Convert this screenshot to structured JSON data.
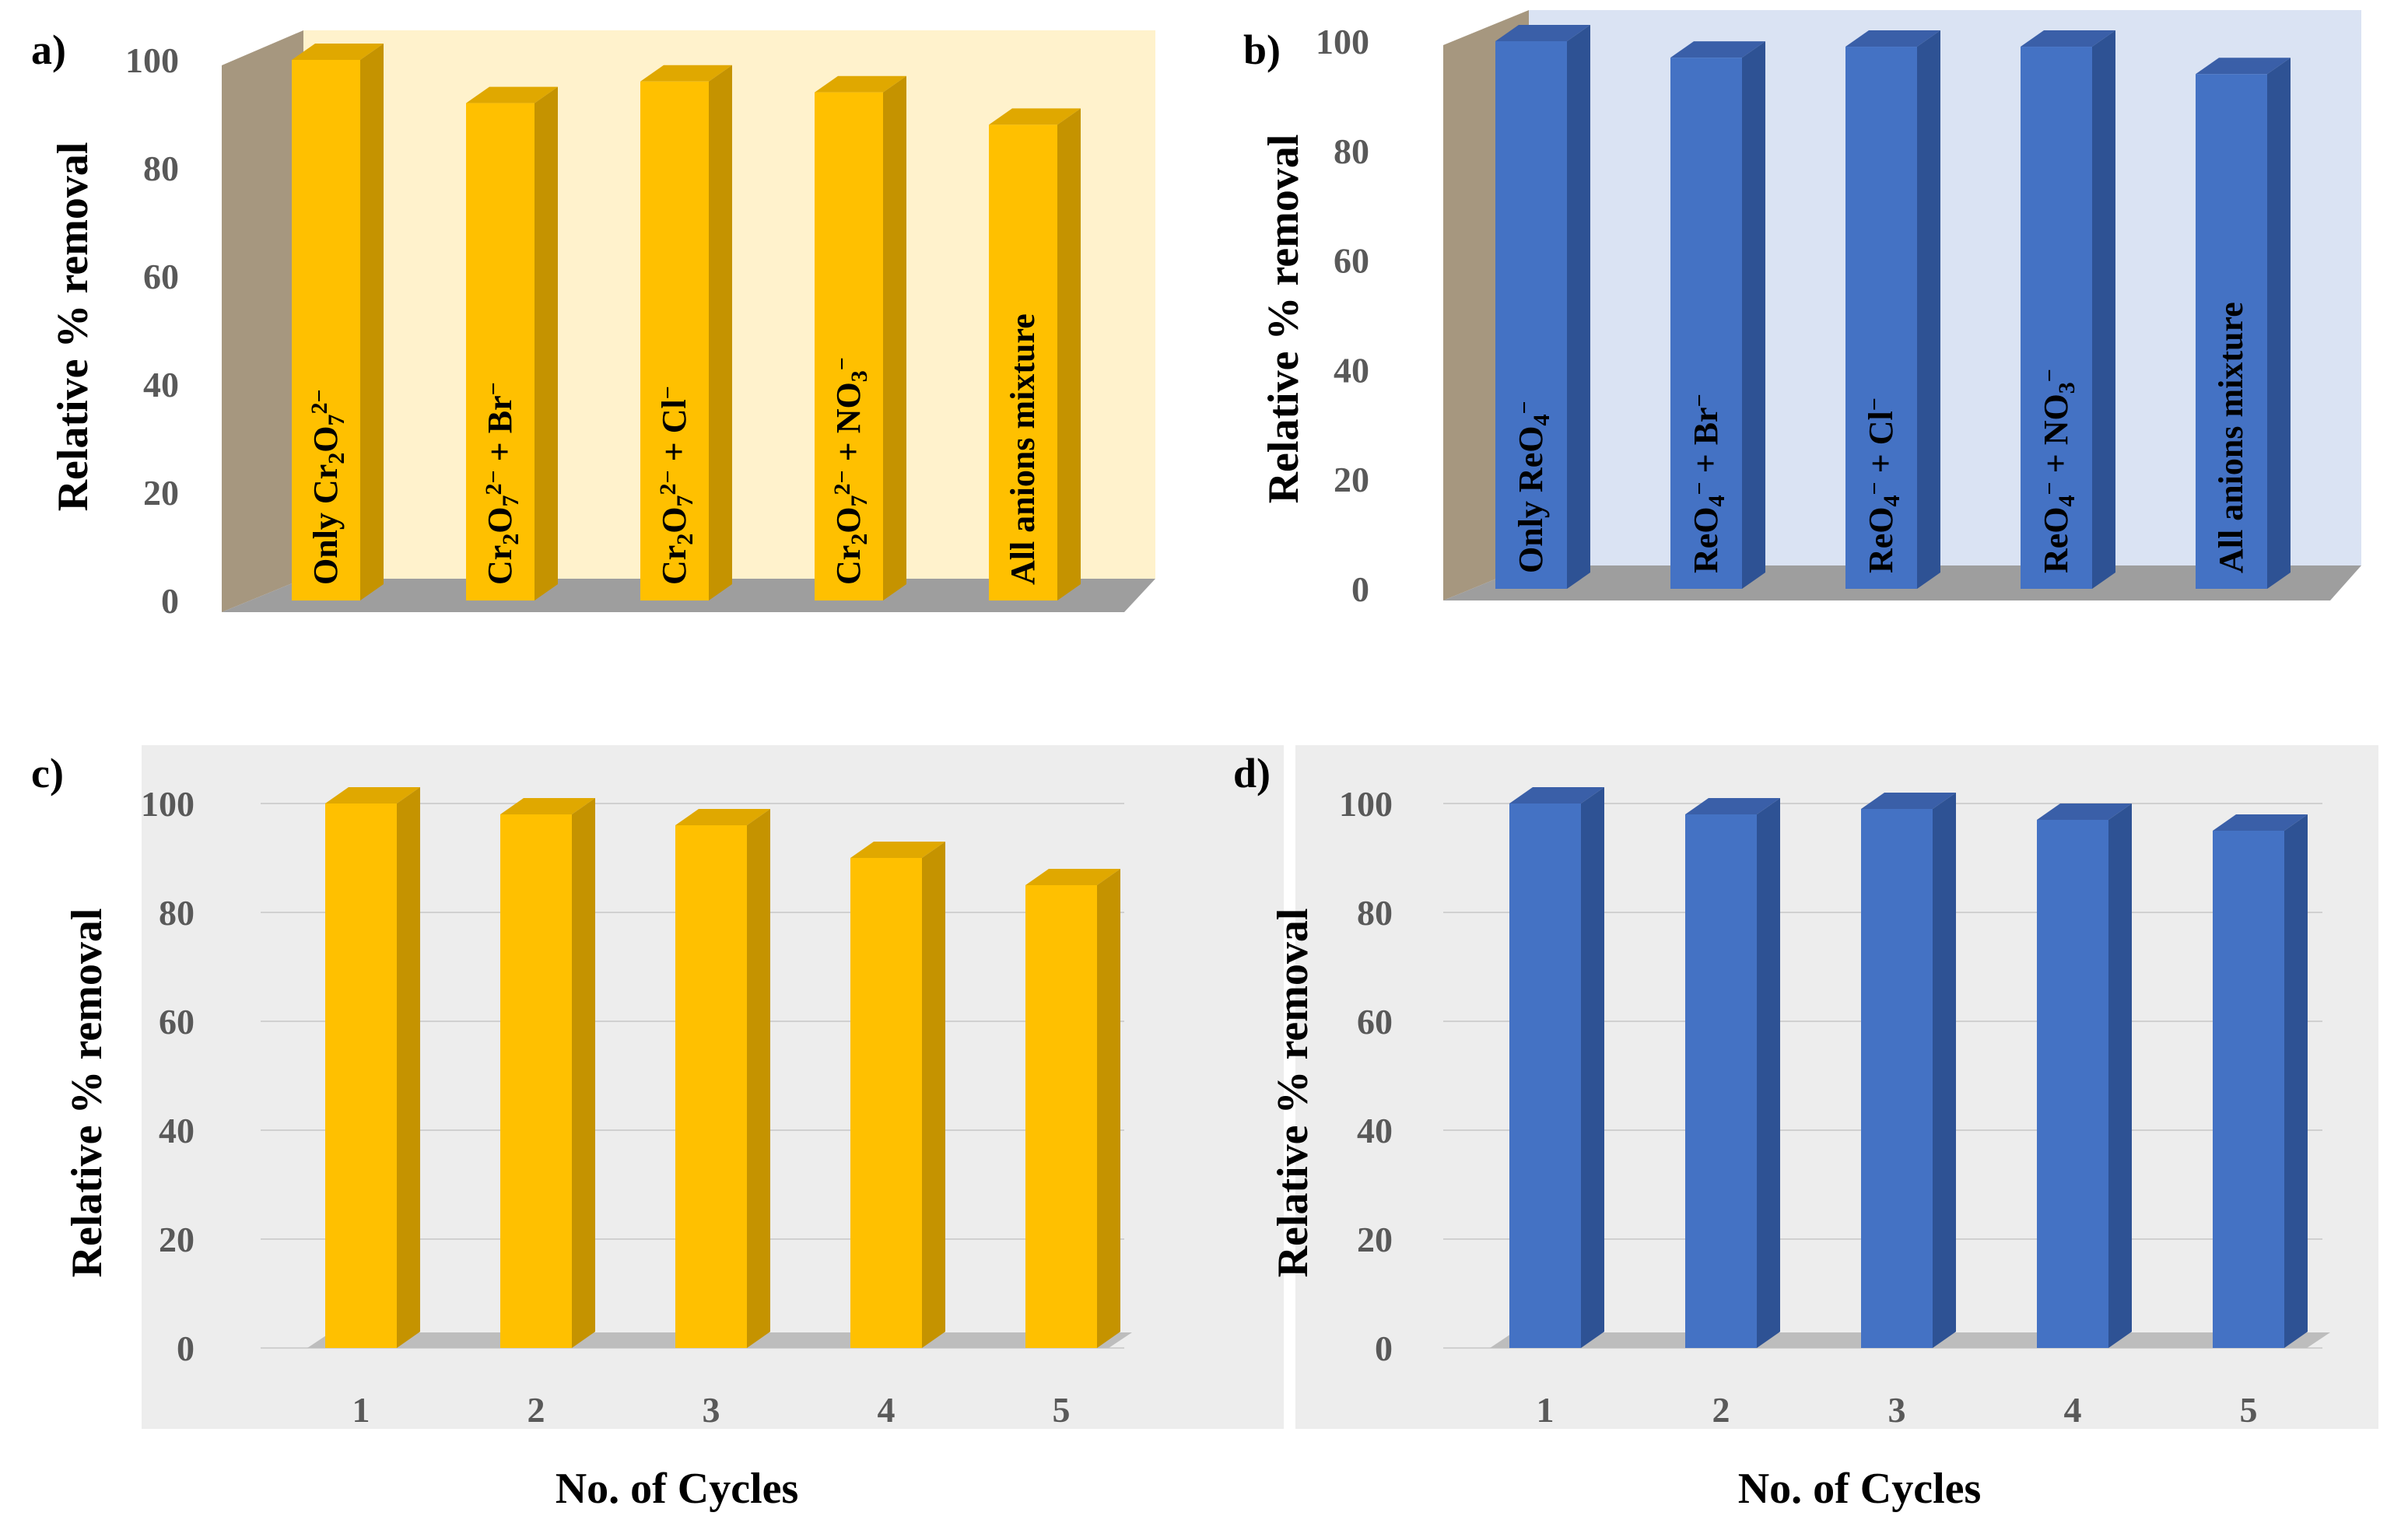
{
  "colors": {
    "gold_front": "#FFC000",
    "gold_side": "#C59300",
    "gold_top": "#E0A800",
    "blue_front": "#4472C4",
    "blue_side": "#2E5294",
    "blue_top": "#3A5FA8",
    "panel_a_back": "#FFF2CC",
    "panel_b_back": "#DAE3F3",
    "wall_left": "#A6977F",
    "floor": "#9E9E9E",
    "panel_cd_back": "#EDEDED",
    "axis_text": "#595959",
    "label_text": "#000000"
  },
  "chart_data": [
    {
      "id": "a",
      "panel_label": "a)",
      "type": "bar",
      "style": "3d-walls",
      "color": "gold",
      "title": "",
      "ylabel": "Relative % removal",
      "xlabel": "",
      "ylim": [
        0,
        100
      ],
      "yticks": [
        0,
        20,
        40,
        60,
        80,
        100
      ],
      "categories": [
        {
          "parts": [
            "Only Cr",
            "2",
            "O",
            "7",
            "2−"
          ],
          "kinds": [
            "t",
            "sub",
            "t",
            "sub",
            "sup"
          ]
        },
        {
          "parts": [
            "Cr",
            "2",
            "O",
            "7",
            "2−",
            " + Br",
            "−"
          ],
          "kinds": [
            "t",
            "sub",
            "t",
            "sub",
            "sup",
            "t",
            "sup"
          ]
        },
        {
          "parts": [
            "Cr",
            "2",
            "O",
            "7",
            "2−",
            " + Cl",
            "−"
          ],
          "kinds": [
            "t",
            "sub",
            "t",
            "sub",
            "sup",
            "t",
            "sup"
          ]
        },
        {
          "parts": [
            "Cr",
            "2",
            "O",
            "7",
            "2−",
            " + NO",
            "3",
            "−"
          ],
          "kinds": [
            "t",
            "sub",
            "t",
            "sub",
            "sup",
            "t",
            "sub",
            "sup"
          ]
        },
        {
          "parts": [
            "All anions mixture"
          ],
          "kinds": [
            "t"
          ]
        }
      ],
      "values": [
        100,
        92,
        96,
        94,
        88
      ]
    },
    {
      "id": "b",
      "panel_label": "b)",
      "type": "bar",
      "style": "3d-walls",
      "color": "blue",
      "title": "",
      "ylabel": "Relative % removal",
      "xlabel": "",
      "ylim": [
        0,
        100
      ],
      "yticks": [
        0,
        20,
        40,
        60,
        80,
        100
      ],
      "categories": [
        {
          "parts": [
            "Only ReO",
            "4",
            "−"
          ],
          "kinds": [
            "t",
            "sub",
            "sup"
          ]
        },
        {
          "parts": [
            "ReO",
            "4",
            "−",
            " + Br",
            "−"
          ],
          "kinds": [
            "t",
            "sub",
            "sup",
            "t",
            "sup"
          ]
        },
        {
          "parts": [
            "ReO",
            "4",
            "−",
            " + Cl",
            "−"
          ],
          "kinds": [
            "t",
            "sub",
            "sup",
            "t",
            "sup"
          ]
        },
        {
          "parts": [
            "ReO",
            "4",
            "−",
            " + NO",
            "3",
            "−"
          ],
          "kinds": [
            "t",
            "sub",
            "sup",
            "t",
            "sub",
            "sup"
          ]
        },
        {
          "parts": [
            "All anions mixture"
          ],
          "kinds": [
            "t"
          ]
        }
      ],
      "values": [
        100,
        97,
        99,
        99,
        94
      ]
    },
    {
      "id": "c",
      "panel_label": "c)",
      "type": "bar",
      "style": "3d-grid",
      "color": "gold",
      "title": "",
      "ylabel": "Relative % removal",
      "xlabel": "No. of Cycles",
      "ylim": [
        0,
        100
      ],
      "yticks": [
        0,
        20,
        40,
        60,
        80,
        100
      ],
      "categories": [
        "1",
        "2",
        "3",
        "4",
        "5"
      ],
      "values": [
        100,
        98,
        96,
        90,
        85
      ]
    },
    {
      "id": "d",
      "panel_label": "d)",
      "type": "bar",
      "style": "3d-grid",
      "color": "blue",
      "title": "",
      "ylabel": "Relative % removal",
      "xlabel": "No. of Cycles",
      "ylim": [
        0,
        100
      ],
      "yticks": [
        0,
        20,
        40,
        60,
        80,
        100
      ],
      "categories": [
        "1",
        "2",
        "3",
        "4",
        "5"
      ],
      "values": [
        100,
        98,
        99,
        97,
        95
      ]
    }
  ]
}
